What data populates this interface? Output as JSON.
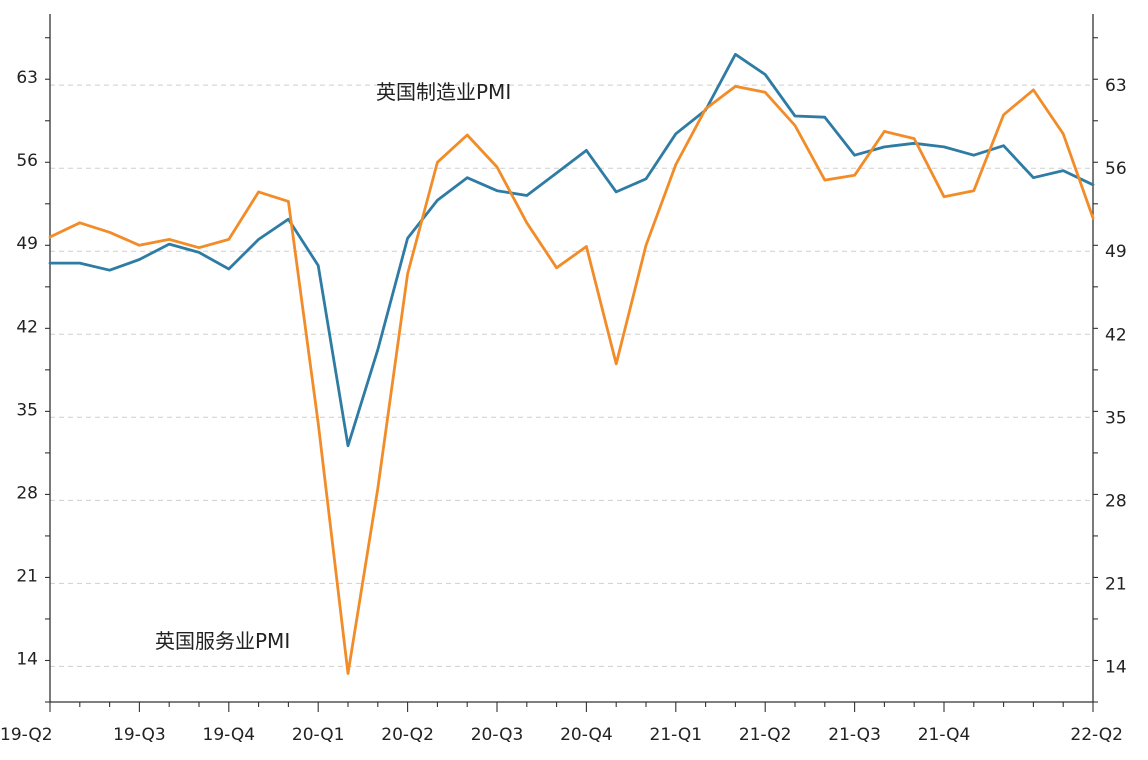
{
  "chart_data": {
    "type": "line",
    "title": "",
    "xlabel": "",
    "ylabel": "",
    "ylim": [
      11,
      69
    ],
    "yticks": [
      14,
      21,
      28,
      35,
      42,
      49,
      56,
      63
    ],
    "y_minor_step": 3.5,
    "grid": "horizontal-dashed",
    "dual_y_axis": true,
    "x_category_labels": [
      {
        "index": 0,
        "label": "19-Q2"
      },
      {
        "index": 3,
        "label": "19-Q3"
      },
      {
        "index": 6,
        "label": "19-Q4"
      },
      {
        "index": 9,
        "label": "20-Q1"
      },
      {
        "index": 12,
        "label": "20-Q2"
      },
      {
        "index": 15,
        "label": "20-Q3"
      },
      {
        "index": 18,
        "label": "20-Q4"
      },
      {
        "index": 21,
        "label": "21-Q1"
      },
      {
        "index": 24,
        "label": "21-Q2"
      },
      {
        "index": 27,
        "label": "21-Q3"
      },
      {
        "index": 30,
        "label": "21-Q4"
      },
      {
        "index": 35,
        "label": "22-Q2"
      }
    ],
    "point_count": 36,
    "series": [
      {
        "name": "英国制造业PMI",
        "color": "#2e7ca3",
        "values": [
          48.0,
          48.0,
          47.4,
          48.3,
          49.6,
          48.9,
          47.5,
          50.0,
          51.7,
          47.8,
          32.6,
          40.7,
          50.1,
          53.3,
          55.2,
          54.1,
          53.7,
          55.6,
          57.5,
          54.0,
          55.1,
          58.9,
          60.9,
          65.6,
          63.9,
          60.4,
          60.3,
          57.1,
          57.8,
          58.1,
          57.8,
          57.1,
          57.9,
          55.2,
          55.8,
          54.6
        ]
      },
      {
        "name": "英国服务业PMI",
        "color": "#f28c28",
        "values": [
          50.2,
          51.4,
          50.6,
          49.5,
          50.0,
          49.3,
          50.0,
          54.0,
          53.2,
          34.5,
          13.4,
          29.0,
          47.1,
          56.5,
          58.8,
          56.1,
          51.4,
          47.6,
          49.4,
          39.5,
          49.5,
          56.3,
          61.0,
          62.9,
          62.4,
          59.6,
          55.0,
          55.4,
          59.1,
          58.5,
          53.6,
          54.1,
          60.5,
          62.6,
          58.9,
          51.8
        ]
      }
    ],
    "annotations": [
      {
        "text": "英国制造业PMI",
        "series": 0
      },
      {
        "text": "英国服务业PMI",
        "series": 1
      }
    ]
  }
}
